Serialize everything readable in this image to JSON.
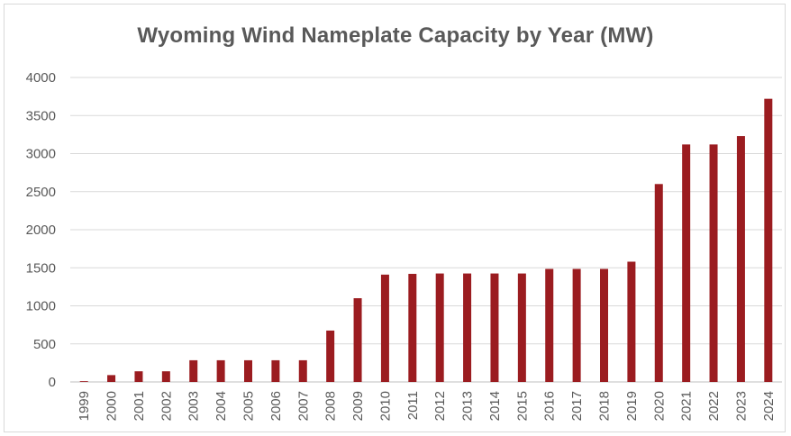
{
  "chart_data": {
    "type": "bar",
    "title": "Wyoming Wind Nameplate Capacity by Year (MW)",
    "xlabel": "",
    "ylabel": "",
    "ylim": [
      0,
      4000
    ],
    "yticks": [
      "0",
      "500",
      "1000",
      "1500",
      "2000",
      "2500",
      "3000",
      "3500",
      "4000"
    ],
    "grid": true,
    "categories": [
      "1999",
      "2000",
      "2001",
      "2002",
      "2003",
      "2004",
      "2005",
      "2006",
      "2007",
      "2008",
      "2009",
      "2010",
      "2011",
      "2012",
      "2013",
      "2014",
      "2015",
      "2016",
      "2017",
      "2018",
      "2019",
      "2020",
      "2021",
      "2022",
      "2023",
      "2024"
    ],
    "values": [
      10,
      90,
      140,
      140,
      285,
      285,
      285,
      285,
      285,
      675,
      1100,
      1410,
      1420,
      1425,
      1425,
      1425,
      1425,
      1485,
      1485,
      1485,
      1580,
      2600,
      3120,
      3120,
      3230,
      3720
    ],
    "bar_color": "#9b1c20"
  }
}
